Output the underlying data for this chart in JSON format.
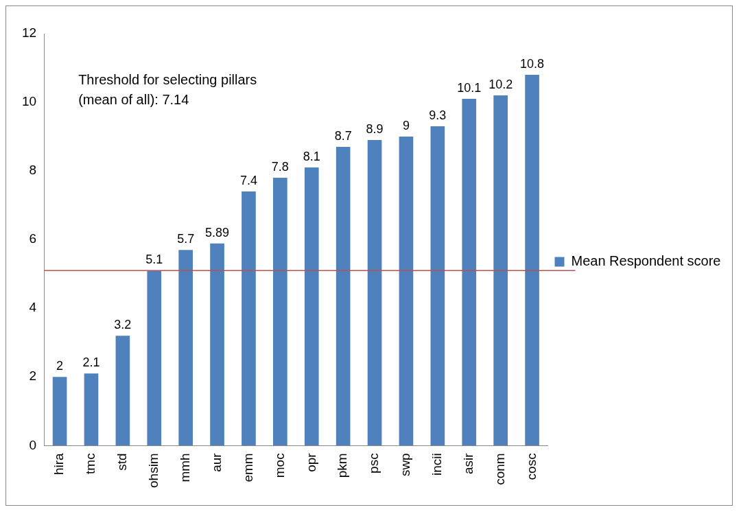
{
  "chart_data": {
    "type": "bar",
    "categories": [
      "hira",
      "tmc",
      "std",
      "ohsim",
      "mmh",
      "aur",
      "emm",
      "moc",
      "opr",
      "pkm",
      "psc",
      "swp",
      "incii",
      "asir",
      "conm",
      "cosc"
    ],
    "series": [
      {
        "name": "Mean Respondent score",
        "color": "#4f81bd",
        "values": [
          2,
          2.1,
          3.2,
          5.1,
          5.7,
          5.89,
          7.4,
          7.8,
          8.1,
          8.7,
          8.9,
          9,
          9.3,
          10.1,
          10.2,
          10.8
        ]
      }
    ],
    "ylim": [
      0,
      12
    ],
    "yticks": [
      0,
      2,
      4,
      6,
      8,
      10,
      12
    ],
    "grid": false,
    "legend": "right",
    "data_labels": true,
    "annotations": [
      "Threshold for selecting pillars (mean of all): 7.14"
    ],
    "ref_lines": [
      {
        "axis": "y",
        "value": 5.1,
        "color": "#c0504d"
      }
    ]
  }
}
